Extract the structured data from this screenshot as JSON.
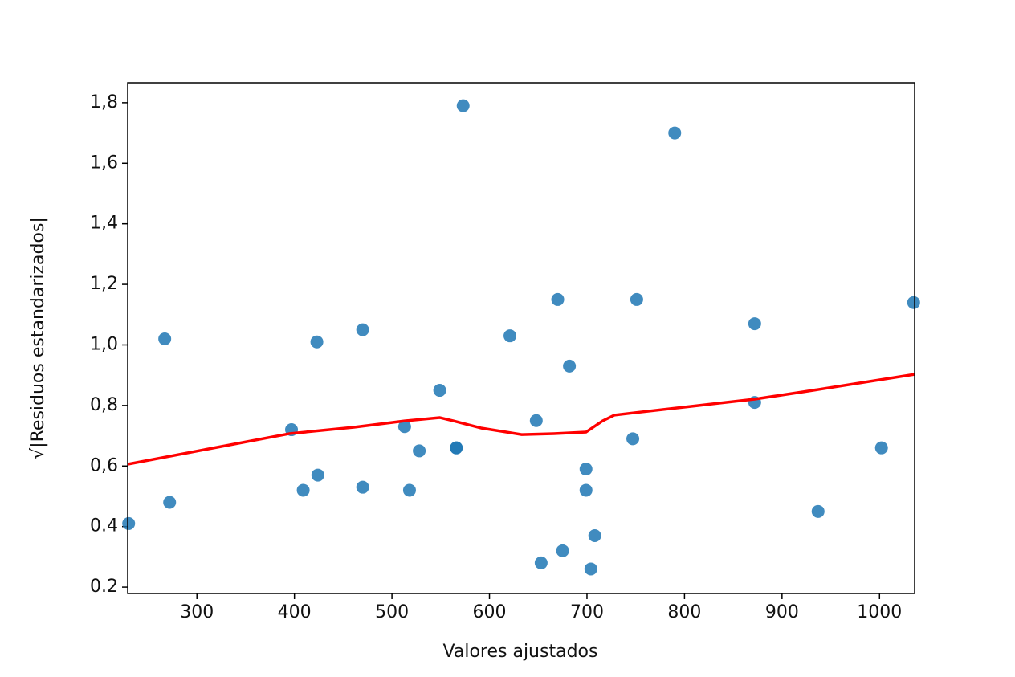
{
  "chart_data": {
    "type": "scatter",
    "x_label": "Valores ajustados",
    "y_label": "√|Residuos estandarizados|",
    "xlim": [
      229,
      1036
    ],
    "ylim": [
      0.179,
      1.866
    ],
    "xticks": [
      300,
      400,
      500,
      600,
      700,
      800,
      900,
      1000
    ],
    "yticks": [
      {
        "value": 0.2,
        "label": "0.2"
      },
      {
        "value": 0.4,
        "label": "0.4"
      },
      {
        "value": 0.6,
        "label": "0,6"
      },
      {
        "value": 0.8,
        "label": "0,8"
      },
      {
        "value": 1.0,
        "label": "1,0"
      },
      {
        "value": 1.2,
        "label": "1,2"
      },
      {
        "value": 1.4,
        "label": "1,4"
      },
      {
        "value": 1.6,
        "label": "1,6"
      },
      {
        "value": 1.8,
        "label": "1,8"
      }
    ],
    "series": [
      {
        "type": "scatter",
        "color": "#1f77b4",
        "x": [
          230,
          267,
          272,
          397,
          409,
          423,
          424,
          470,
          470,
          513,
          518,
          528,
          549,
          566,
          566,
          573,
          621,
          648,
          653,
          670,
          675,
          682,
          699,
          699,
          704,
          708,
          747,
          751,
          790,
          872,
          872,
          937,
          1002,
          1035
        ],
        "values": [
          0.41,
          1.02,
          0.48,
          0.72,
          0.52,
          1.01,
          0.57,
          1.05,
          0.53,
          0.73,
          0.52,
          0.65,
          0.85,
          0.66,
          0.66,
          1.79,
          1.03,
          0.75,
          0.28,
          1.15,
          0.32,
          0.93,
          0.59,
          0.52,
          0.26,
          0.37,
          0.69,
          1.15,
          1.7,
          1.07,
          0.81,
          0.45,
          0.66,
          1.14
        ]
      },
      {
        "type": "line",
        "color": "#ff0000",
        "x": [
          229,
          395,
          461,
          513,
          549,
          563,
          592,
          633,
          666,
          699,
          716,
          728,
          749,
          815,
          872,
          922,
          1036
        ],
        "values": [
          0.606,
          0.707,
          0.728,
          0.749,
          0.76,
          0.749,
          0.725,
          0.704,
          0.707,
          0.712,
          0.749,
          0.768,
          0.776,
          0.8,
          0.821,
          0.845,
          0.903
        ]
      }
    ]
  }
}
